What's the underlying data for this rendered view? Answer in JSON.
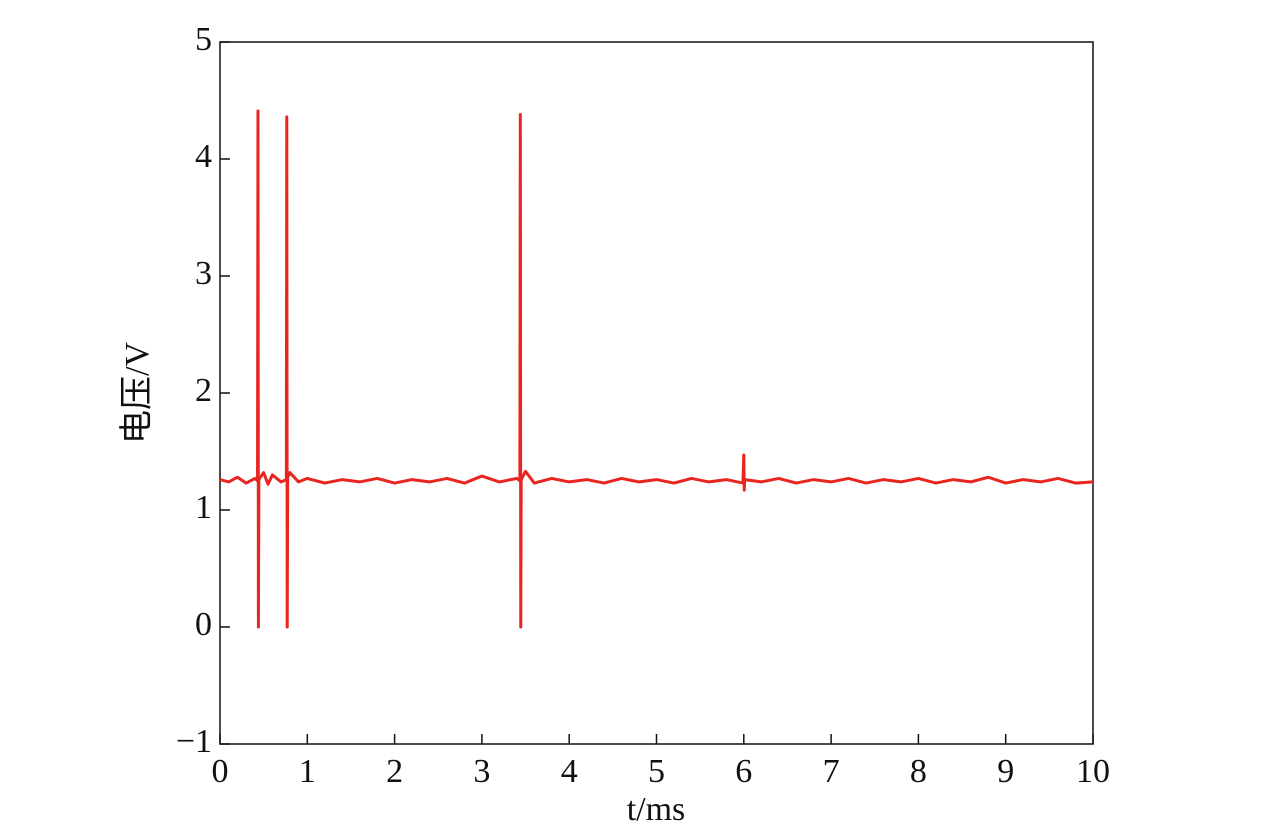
{
  "chart_data": {
    "type": "line",
    "xlabel": "t/ms",
    "ylabel": "电压/V",
    "xlim": [
      0,
      10
    ],
    "ylim": [
      -1,
      5
    ],
    "xticks": [
      0,
      1,
      2,
      3,
      4,
      5,
      6,
      7,
      8,
      9,
      10
    ],
    "yticks": [
      {
        "value": -1,
        "label": "−1"
      },
      0,
      1,
      2,
      3,
      4,
      5
    ],
    "series": [
      {
        "color": "#e8251f",
        "x": [
          0,
          0.1,
          0.2,
          0.3,
          0.4,
          0.43,
          0.435,
          0.44,
          0.445,
          0.5,
          0.55,
          0.6,
          0.7,
          0.76,
          0.765,
          0.77,
          0.775,
          0.8,
          0.9,
          1.0,
          1.2,
          1.4,
          1.6,
          1.8,
          2.0,
          2.2,
          2.4,
          2.6,
          2.8,
          3.0,
          3.2,
          3.4,
          3.435,
          3.44,
          3.445,
          3.45,
          3.5,
          3.6,
          3.8,
          4.0,
          4.2,
          4.4,
          4.6,
          4.8,
          5.0,
          5.2,
          5.4,
          5.6,
          5.8,
          5.99,
          6.0,
          6.005,
          6.01,
          6.2,
          6.4,
          6.6,
          6.8,
          7.0,
          7.2,
          7.4,
          7.6,
          7.8,
          8.0,
          8.2,
          8.4,
          8.6,
          8.8,
          9.0,
          9.2,
          9.4,
          9.6,
          9.8,
          10.0
        ],
        "values": [
          1.26,
          1.24,
          1.28,
          1.23,
          1.27,
          1.25,
          4.41,
          0.0,
          1.26,
          1.32,
          1.22,
          1.3,
          1.24,
          1.26,
          4.36,
          0.0,
          1.28,
          1.32,
          1.24,
          1.27,
          1.23,
          1.26,
          1.24,
          1.27,
          1.23,
          1.26,
          1.24,
          1.27,
          1.23,
          1.29,
          1.24,
          1.27,
          1.25,
          4.38,
          0.0,
          1.26,
          1.33,
          1.23,
          1.27,
          1.24,
          1.26,
          1.23,
          1.27,
          1.24,
          1.26,
          1.23,
          1.27,
          1.24,
          1.26,
          1.23,
          1.47,
          1.17,
          1.26,
          1.24,
          1.27,
          1.23,
          1.26,
          1.24,
          1.27,
          1.23,
          1.26,
          1.24,
          1.27,
          1.23,
          1.26,
          1.24,
          1.28,
          1.23,
          1.26,
          1.24,
          1.27,
          1.23,
          1.24
        ]
      }
    ]
  }
}
